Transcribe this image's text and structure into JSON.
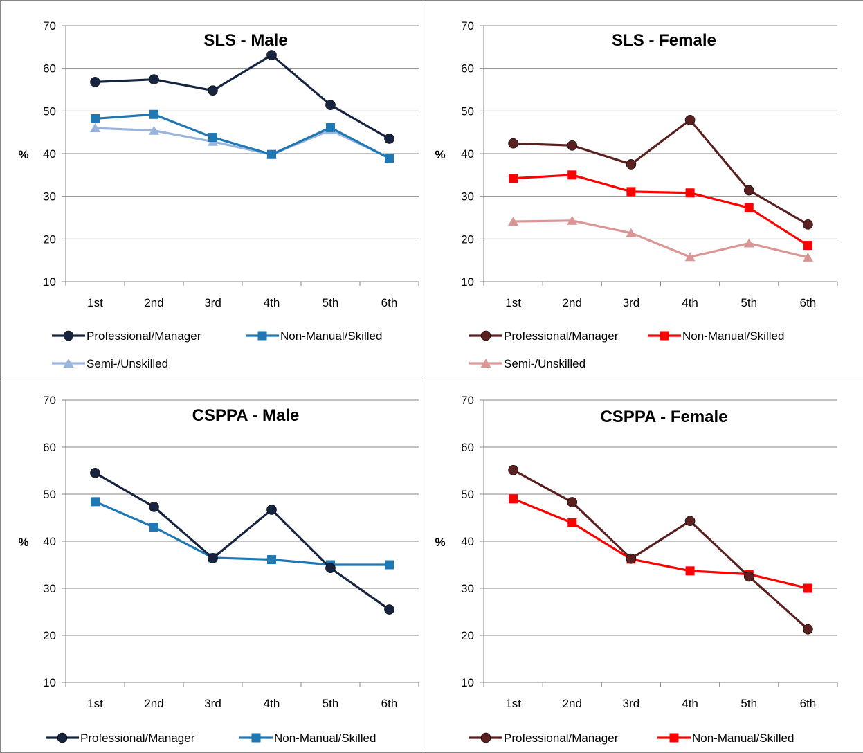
{
  "chart_data": [
    {
      "type": "line",
      "title": "SLS - Male",
      "ylabel": "%",
      "xlabel": "",
      "ylim": [
        10,
        70
      ],
      "yticks": [
        10,
        20,
        30,
        40,
        50,
        60,
        70
      ],
      "categories": [
        "1st",
        "2nd",
        "3rd",
        "4th",
        "5th",
        "6th"
      ],
      "grid": true,
      "legend_position": "bottom",
      "series": [
        {
          "name": "Professional/Manager",
          "values": [
            56.8,
            57.4,
            54.8,
            63.1,
            51.4,
            43.5
          ],
          "color": "#17243f",
          "marker": "circle"
        },
        {
          "name": "Non-Manual/Skilled",
          "values": [
            48.2,
            49.2,
            43.8,
            39.8,
            46.1,
            38.9
          ],
          "color": "#1f77b4",
          "marker": "square"
        },
        {
          "name": "Semi-/Unskilled",
          "values": [
            46.0,
            45.4,
            42.8,
            39.8,
            45.5,
            39.0
          ],
          "color": "#9ab5dd",
          "marker": "triangle"
        }
      ]
    },
    {
      "type": "line",
      "title": "SLS - Female",
      "ylabel": "%",
      "xlabel": "",
      "ylim": [
        10,
        70
      ],
      "yticks": [
        10,
        20,
        30,
        40,
        50,
        60,
        70
      ],
      "categories": [
        "1st",
        "2nd",
        "3rd",
        "4th",
        "5th",
        "6th"
      ],
      "grid": true,
      "legend_position": "bottom",
      "series": [
        {
          "name": "Professional/Manager",
          "values": [
            42.4,
            41.9,
            37.5,
            47.9,
            31.4,
            23.4
          ],
          "color": "#5a2020",
          "marker": "circle"
        },
        {
          "name": "Non-Manual/Skilled",
          "values": [
            34.2,
            35.0,
            31.1,
            30.8,
            27.3,
            18.5
          ],
          "color": "#ff0000",
          "marker": "square"
        },
        {
          "name": "Semi-/Unskilled",
          "values": [
            24.1,
            24.3,
            21.4,
            15.8,
            19.0,
            15.7
          ],
          "color": "#d99694",
          "marker": "triangle"
        }
      ]
    },
    {
      "type": "line",
      "title": "CSPPA - Male",
      "ylabel": "%",
      "xlabel": "",
      "ylim": [
        10,
        70
      ],
      "yticks": [
        10,
        20,
        30,
        40,
        50,
        60,
        70
      ],
      "categories": [
        "1st",
        "2nd",
        "3rd",
        "4th",
        "5th",
        "6th"
      ],
      "grid": true,
      "legend_position": "bottom",
      "series": [
        {
          "name": "Professional/Manager",
          "values": [
            54.5,
            47.3,
            36.4,
            46.7,
            34.3,
            25.5
          ],
          "color": "#17243f",
          "marker": "circle"
        },
        {
          "name": "Non-Manual/Skilled",
          "values": [
            48.4,
            43.0,
            36.5,
            36.1,
            35.0,
            35.0
          ],
          "color": "#1f77b4",
          "marker": "square"
        }
      ]
    },
    {
      "type": "line",
      "title": "CSPPA - Female",
      "ylabel": "%",
      "xlabel": "",
      "ylim": [
        10,
        70
      ],
      "yticks": [
        10,
        20,
        30,
        40,
        50,
        60,
        70
      ],
      "categories": [
        "1st",
        "2nd",
        "3rd",
        "4th",
        "5th",
        "6th"
      ],
      "grid": true,
      "legend_position": "bottom",
      "series": [
        {
          "name": "Professional/Manager",
          "values": [
            55.1,
            48.3,
            36.3,
            44.3,
            32.5,
            21.3
          ],
          "color": "#5a2020",
          "marker": "circle"
        },
        {
          "name": "Non-Manual/Skilled",
          "values": [
            49.0,
            43.9,
            36.2,
            33.7,
            33.0,
            30.0
          ],
          "color": "#ff0000",
          "marker": "square"
        }
      ]
    }
  ]
}
